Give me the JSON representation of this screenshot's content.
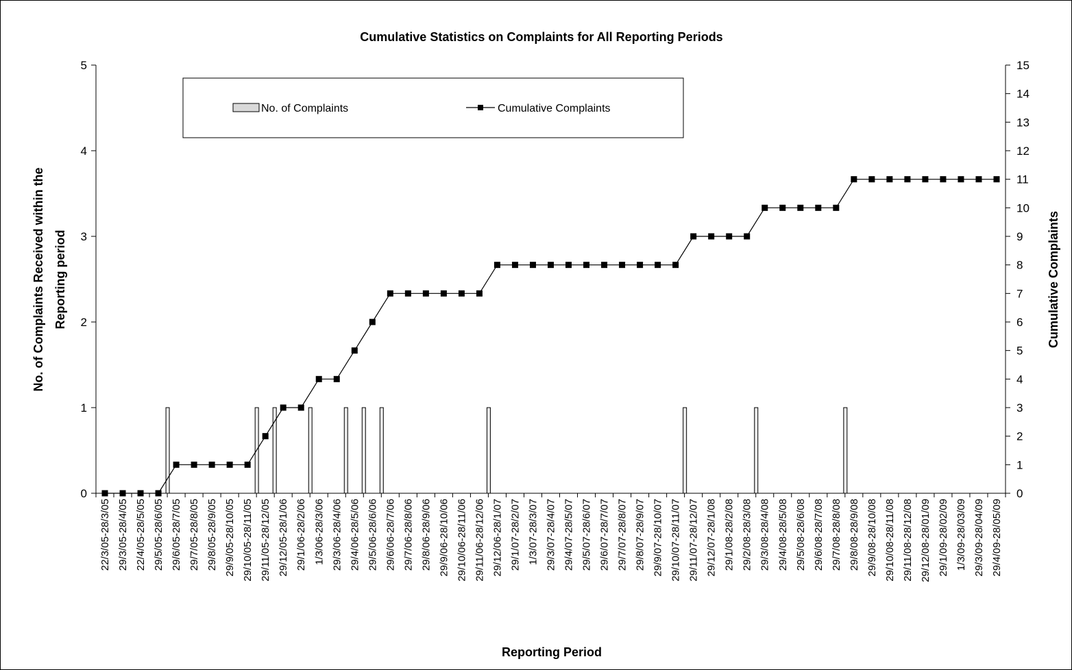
{
  "chart_data": {
    "type": "bar",
    "title": "Cumulative Statistics on Complaints for All Reporting Periods",
    "xlabel": "Reporting Period",
    "ylabel_line1": "No. of Complaints Received within the",
    "ylabel_line2": "Reporting period",
    "y2label": "Cumulative Complaints",
    "ylim": [
      0,
      5
    ],
    "yticks": [
      0,
      1,
      2,
      3,
      4,
      5
    ],
    "y2lim": [
      0,
      15
    ],
    "y2ticks": [
      0,
      1,
      2,
      3,
      4,
      5,
      6,
      7,
      8,
      9,
      10,
      11,
      12,
      13,
      14,
      15
    ],
    "grid": false,
    "legend_position": "top-left-inside",
    "categories": [
      "22/3/05-28/3/05",
      "29/3/05-28/4/05",
      "22/4/05-28/5/05",
      "29/5/05-28/6/05",
      "29/6/05-28/7/05",
      "29/7/05-28/8/05",
      "29/8/05-28/9/05",
      "29/9/05-28/10/05",
      "29/10/05-28/11/05",
      "29/11/05-28/12/05",
      "29/12/05-28/1/06",
      "29/1/06-28/2/06",
      "1/3/06-28/3/06",
      "29/3/06-28/4/06",
      "29/4/06-28/5/06",
      "29/5/06-28/6/06",
      "29/6/06-28/7/06",
      "29/7/06-28/8/06",
      "29/8/06-28/9/06",
      "29/9/06-28/10/06",
      "29/10/06-28/11/06",
      "29/11/06-28/12/06",
      "29/12/06-28/1/07",
      "29/1/07-28/2/07",
      "1/3/07-28/3/07",
      "29/3/07-28/4/07",
      "29/4/07-28/5/07",
      "29/5/07-28/6/07",
      "29/6/07-28/7/07",
      "29/7/07-28/8/07",
      "29/8/07-28/9/07",
      "29/9/07-28/10/07",
      "29/10/07-28/11/07",
      "29/11/07-28/12/07",
      "29/12/07-28/1/08",
      "29/1/08-28/2/08",
      "29/2/08-28/3/08",
      "29/3/08-28/4/08",
      "29/4/08-28/5/08",
      "29/5/08-28/6/08",
      "29/6/08-28/7/08",
      "29/7/08-28/8/08",
      "29/8/08-28/9/08",
      "29/9/08-28/10/08",
      "29/10/08-28/11/08",
      "29/11/08-28/12/08",
      "29/12/08-28/01/09",
      "29/1/09-28/02/09",
      "1/3/09-28/03/09",
      "29/3/09-28/04/09",
      "29/4/09-28/05/09"
    ],
    "series": [
      {
        "name": "No. of Complaints",
        "type": "bar",
        "axis": "left",
        "values": [
          0,
          0,
          0,
          0,
          1,
          0,
          0,
          0,
          0,
          1,
          1,
          0,
          1,
          0,
          1,
          1,
          1,
          0,
          0,
          0,
          0,
          0,
          1,
          0,
          0,
          0,
          0,
          0,
          0,
          0,
          0,
          0,
          0,
          1,
          0,
          0,
          0,
          1,
          0,
          0,
          0,
          0,
          1,
          0,
          0,
          0,
          0,
          0,
          0,
          0,
          0
        ]
      },
      {
        "name": "Cumulative Complaints",
        "type": "line",
        "axis": "right",
        "marker": "square",
        "values": [
          0,
          0,
          0,
          0,
          1,
          1,
          1,
          1,
          1,
          2,
          3,
          3,
          4,
          4,
          5,
          6,
          7,
          7,
          7,
          7,
          7,
          7,
          8,
          8,
          8,
          8,
          8,
          8,
          8,
          8,
          8,
          8,
          8,
          9,
          9,
          9,
          9,
          10,
          10,
          10,
          10,
          10,
          11,
          11,
          11,
          11,
          11,
          11,
          11,
          11,
          11
        ]
      }
    ]
  }
}
